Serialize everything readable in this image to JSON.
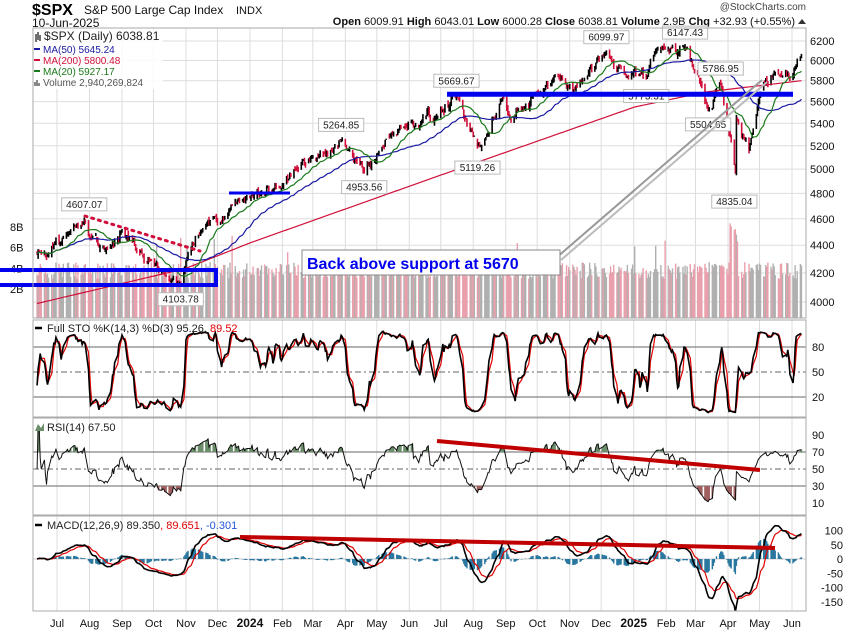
{
  "header": {
    "symbol": "$SPX",
    "name": "S&P 500 Large Cap Index",
    "exchange": "INDX",
    "date": "10-Jun-2025",
    "watermark": "@StockCharts.com",
    "open_label": "Open",
    "open": "6009.91",
    "high_label": "High",
    "high": "6043.01",
    "low_label": "Low",
    "low": "6000.28",
    "close_label": "Close",
    "close": "6038.81",
    "volume_label": "Volume",
    "volume": "2.9B",
    "chg_label": "Chg",
    "chg": "+32.93 (+0.55%)",
    "chg_icon": "up-triangle-icon"
  },
  "legend": {
    "price": "$SPX (Daily) 6038.81",
    "ma50": "MA(50) 5645.24",
    "ma200": "MA(200) 5800.48",
    "ma20": "MA(20) 5927.17",
    "volume": "Volume 2,940,269,824"
  },
  "panels": {
    "sto": {
      "title": "Full STO %K(14,3) %D(3) 95.26,",
      "d_value": " 89.52",
      "ticks": [
        "80",
        "50",
        "20"
      ]
    },
    "rsi": {
      "title": "RSI(14) 67.50",
      "ticks": [
        "90",
        "70",
        "50",
        "30",
        "10"
      ]
    },
    "macd": {
      "title": "MACD(12,26,9) 89.350",
      "signal": ", 89.651",
      "hist": ", -0.301",
      "ticks": [
        "100",
        "50",
        "0",
        "-50",
        "-100",
        "-150"
      ]
    }
  },
  "annotation_text": "Back above support at 5670",
  "colors": {
    "up": "#000000",
    "down": "#d0103a",
    "ma20": "#1a7a1a",
    "ma50": "#1a1aa0",
    "ma200": "#d0103a",
    "support": "#0000ee",
    "trend": "#c00000",
    "hist": "#2a78a0",
    "rsi_fill": "#6b8e6b"
  },
  "chart_data": {
    "type": "ohlc",
    "title": "$SPX S&P 500 Large Cap Index",
    "scale": "log",
    "ylim": [
      4000,
      6200
    ],
    "y_ticks": [
      "6200",
      "6000",
      "5800",
      "5600",
      "5400",
      "5200",
      "5000",
      "4800",
      "4600",
      "4400",
      "4200",
      "4000"
    ],
    "volume_ticks": [
      "8B",
      "6B",
      "4B",
      "2B"
    ],
    "x_ticks": [
      [
        "Jul",
        "2023-07-01"
      ],
      [
        "Aug",
        "2023-08-01"
      ],
      [
        "Sep",
        "2023-09-01"
      ],
      [
        "Oct",
        "2023-10-01"
      ],
      [
        "Nov",
        "2023-11-01"
      ],
      [
        "Dec",
        "2023-12-01"
      ],
      [
        "2024",
        "2024-01-01"
      ],
      [
        "Feb",
        "2024-02-01"
      ],
      [
        "Mar",
        "2024-03-01"
      ],
      [
        "Apr",
        "2024-04-01"
      ],
      [
        "May",
        "2024-05-01"
      ],
      [
        "Jun",
        "2024-06-01"
      ],
      [
        "Jul",
        "2024-07-01"
      ],
      [
        "Aug",
        "2024-08-01"
      ],
      [
        "Sep",
        "2024-09-01"
      ],
      [
        "Oct",
        "2024-10-01"
      ],
      [
        "Nov",
        "2024-11-01"
      ],
      [
        "Dec",
        "2024-12-01"
      ],
      [
        "2025",
        "2025-01-01"
      ],
      [
        "Feb",
        "2025-02-01"
      ],
      [
        "Mar",
        "2025-03-01"
      ],
      [
        "Apr",
        "2025-04-01"
      ],
      [
        "May",
        "2025-05-01"
      ],
      [
        "Jun",
        "2025-06-01"
      ]
    ],
    "price_anchors": [
      [
        "2023-06-12",
        4338
      ],
      [
        "2023-06-30",
        4450
      ],
      [
        "2023-07-27",
        4590
      ],
      [
        "2023-08-18",
        4370
      ],
      [
        "2023-09-01",
        4515
      ],
      [
        "2023-09-29",
        4288
      ],
      [
        "2023-10-27",
        4117
      ],
      [
        "2023-11-15",
        4502
      ],
      [
        "2023-12-29",
        4770
      ],
      [
        "2024-01-31",
        4845
      ],
      [
        "2024-02-29",
        5096
      ],
      [
        "2024-03-28",
        5254
      ],
      [
        "2024-04-19",
        4967
      ],
      [
        "2024-05-15",
        5308
      ],
      [
        "2024-06-28",
        5460
      ],
      [
        "2024-07-16",
        5667
      ],
      [
        "2024-08-05",
        5186
      ],
      [
        "2024-08-30",
        5648
      ],
      [
        "2024-09-06",
        5408
      ],
      [
        "2024-10-18",
        5864
      ],
      [
        "2024-11-04",
        5712
      ],
      [
        "2024-12-06",
        6090
      ],
      [
        "2024-12-20",
        5930
      ],
      [
        "2025-01-13",
        5836
      ],
      [
        "2025-01-23",
        6118
      ],
      [
        "2025-02-19",
        6144
      ],
      [
        "2025-03-13",
        5521
      ],
      [
        "2025-03-25",
        5776
      ],
      [
        "2025-04-08",
        4982
      ],
      [
        "2025-04-09",
        5456
      ],
      [
        "2025-04-21",
        5158
      ],
      [
        "2025-05-02",
        5686
      ],
      [
        "2025-05-12",
        5844
      ],
      [
        "2025-05-21",
        5844
      ],
      [
        "2025-06-10",
        6038.81
      ]
    ],
    "ma200_anchors": [
      [
        "2023-06-12",
        3990
      ],
      [
        "2023-10-31",
        4230
      ],
      [
        "2024-01-02",
        4420
      ],
      [
        "2024-07-01",
        4950
      ],
      [
        "2025-01-02",
        5550
      ],
      [
        "2025-03-10",
        5690
      ],
      [
        "2025-06-10",
        5800.48
      ]
    ],
    "price_labels": [
      [
        "4607.07",
        "2023-07-27",
        4607.07,
        "above"
      ],
      [
        "4103.78",
        "2023-10-27",
        4103.78,
        "below"
      ],
      [
        "5264.85",
        "2024-03-28",
        5264.85,
        "above"
      ],
      [
        "4953.56",
        "2024-04-19",
        4953.56,
        "below"
      ],
      [
        "5669.67",
        "2024-07-16",
        5669.67,
        "above"
      ],
      [
        "5119.26",
        "2024-08-05",
        5119.26,
        "below"
      ],
      [
        "6099.97",
        "2024-12-06",
        6099.97,
        "above"
      ],
      [
        "5773.31",
        "2025-01-13",
        5773.31,
        "below"
      ],
      [
        "6147.43",
        "2025-02-19",
        6147.43,
        "above"
      ],
      [
        "5504.65",
        "2025-03-13",
        5504.65,
        "below"
      ],
      [
        "5786.95",
        "2025-03-25",
        5786.95,
        "above"
      ],
      [
        "4835.04",
        "2025-04-07",
        4835.04,
        "below"
      ]
    ],
    "support_level": 5670,
    "series": [
      "Price",
      "MA(20)",
      "MA(50)",
      "MA(200)",
      "Volume",
      "Full STO %K",
      "%D",
      "RSI(14)",
      "MACD",
      "Signal",
      "Histogram"
    ]
  }
}
